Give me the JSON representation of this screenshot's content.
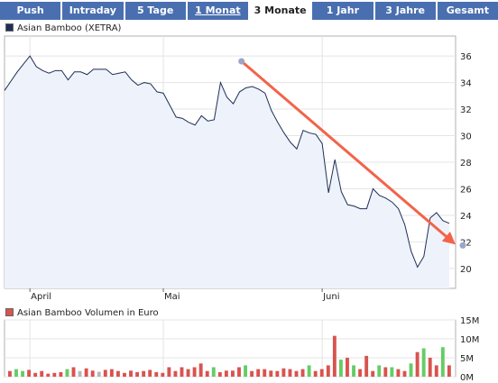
{
  "tabs": [
    {
      "label": "Push",
      "active": false,
      "underline": false
    },
    {
      "label": "Intraday",
      "active": false,
      "underline": false
    },
    {
      "label": "5 Tage",
      "active": false,
      "underline": false
    },
    {
      "label": "1 Monat",
      "active": false,
      "underline": true
    },
    {
      "label": "3 Monate",
      "active": true,
      "underline": false
    },
    {
      "label": "1 Jahr",
      "active": false,
      "underline": false
    },
    {
      "label": "3 Jahre",
      "active": false,
      "underline": false
    },
    {
      "label": "Gesamt",
      "active": false,
      "underline": false
    }
  ],
  "colors": {
    "tab_bg": "#4a6fb0",
    "price_line": "#1f2f55",
    "price_fill": "#eef2fb",
    "trend_line": "#f2644a",
    "trend_point": "#9aa6c8",
    "vol_red": "#d9534f",
    "vol_green": "#66cc66",
    "vol_gray": "#b8b8b8",
    "grid": "#e4e4e4"
  },
  "chart_data": [
    {
      "type": "line",
      "legend": "Asian Bamboo (XETRA)",
      "legend_color": "#1f2f55",
      "ylim": [
        18.5,
        37.5
      ],
      "yticks": [
        20,
        22,
        24,
        26,
        28,
        30,
        32,
        34,
        36
      ],
      "xlabels": [
        "April",
        "Mai",
        "Juni"
      ],
      "xlabel_days": [
        4,
        25,
        50
      ],
      "xlim": [
        0,
        71
      ],
      "x": [
        0,
        1,
        2,
        3,
        4,
        5,
        6,
        7,
        8,
        9,
        10,
        11,
        12,
        13,
        14,
        15,
        16,
        17,
        18,
        19,
        20,
        21,
        22,
        23,
        24,
        25,
        26,
        27,
        28,
        29,
        30,
        31,
        32,
        33,
        34,
        35,
        36,
        37,
        38,
        39,
        40,
        41,
        42,
        43,
        44,
        45,
        46,
        47,
        48,
        49,
        50,
        51,
        52,
        53,
        54,
        55,
        56,
        57,
        58,
        59,
        60,
        61,
        62,
        63,
        64,
        65,
        66,
        67,
        68,
        69,
        70
      ],
      "values": [
        33.4,
        34.1,
        34.8,
        35.4,
        36.0,
        35.2,
        34.9,
        34.7,
        34.9,
        34.9,
        34.2,
        34.8,
        34.8,
        34.6,
        35.0,
        35.0,
        35.0,
        34.6,
        34.7,
        34.8,
        34.2,
        33.8,
        34.0,
        33.9,
        33.3,
        33.2,
        32.3,
        31.4,
        31.3,
        31.0,
        30.8,
        31.5,
        31.1,
        31.2,
        34.0,
        32.9,
        32.4,
        33.3,
        33.6,
        33.7,
        33.5,
        33.2,
        31.9,
        31.0,
        30.2,
        29.5,
        29.0,
        30.4,
        30.2,
        30.1,
        29.4,
        25.7,
        28.2,
        25.8,
        24.8,
        24.7,
        24.5,
        24.5,
        26.0,
        25.5,
        25.3,
        25.0,
        24.5,
        23.3,
        21.3,
        20.1,
        20.9,
        23.8,
        24.2,
        23.6,
        23.4
      ],
      "trend": {
        "from": [
          37.3,
          35.6
        ],
        "to": [
          71,
          21.8
        ]
      }
    },
    {
      "type": "bar",
      "legend": "Asian Bamboo Volumen in Euro",
      "legend_color": "#d9534f",
      "ylim": [
        0,
        15
      ],
      "yticks": [
        0,
        5,
        10,
        15
      ],
      "ytick_labels": [
        "0M",
        "5M",
        "10M",
        "15M"
      ],
      "values": [
        1.5,
        2.0,
        1.5,
        1.8,
        1.0,
        1.5,
        0.8,
        1.0,
        1.2,
        2.0,
        2.5,
        1.5,
        2.2,
        1.6,
        1.3,
        1.8,
        2.0,
        1.5,
        1.0,
        1.6,
        1.2,
        1.5,
        1.8,
        1.2,
        1.0,
        2.5,
        1.5,
        2.5,
        2.0,
        2.5,
        3.5,
        1.5,
        2.5,
        1.2,
        1.6,
        1.6,
        2.5,
        3.0,
        1.5,
        2.0,
        2.0,
        1.6,
        1.5,
        2.2,
        2.0,
        1.5,
        2.0,
        3.0,
        1.5,
        2.0,
        3.0,
        10.8,
        4.5,
        5.0,
        3.0,
        2.0,
        5.5,
        1.5,
        3.0,
        2.5,
        2.5,
        2.0,
        1.5,
        3.5,
        6.5,
        7.5,
        5.0,
        3.0,
        7.8,
        3.0
      ],
      "colors": [
        "r",
        "g",
        "g",
        "r",
        "r",
        "r",
        "r",
        "r",
        "r",
        "g",
        "r",
        "gr",
        "r",
        "r",
        "gr",
        "r",
        "r",
        "r",
        "r",
        "r",
        "r",
        "r",
        "r",
        "r",
        "r",
        "r",
        "r",
        "r",
        "r",
        "r",
        "r",
        "r",
        "g",
        "r",
        "r",
        "r",
        "r",
        "g",
        "r",
        "r",
        "r",
        "r",
        "r",
        "r",
        "r",
        "r",
        "r",
        "g",
        "r",
        "r",
        "r",
        "r",
        "g",
        "r",
        "g",
        "r",
        "r",
        "r",
        "g",
        "r",
        "g",
        "r",
        "r",
        "g",
        "r",
        "g",
        "r",
        "r",
        "g",
        "r"
      ]
    }
  ]
}
